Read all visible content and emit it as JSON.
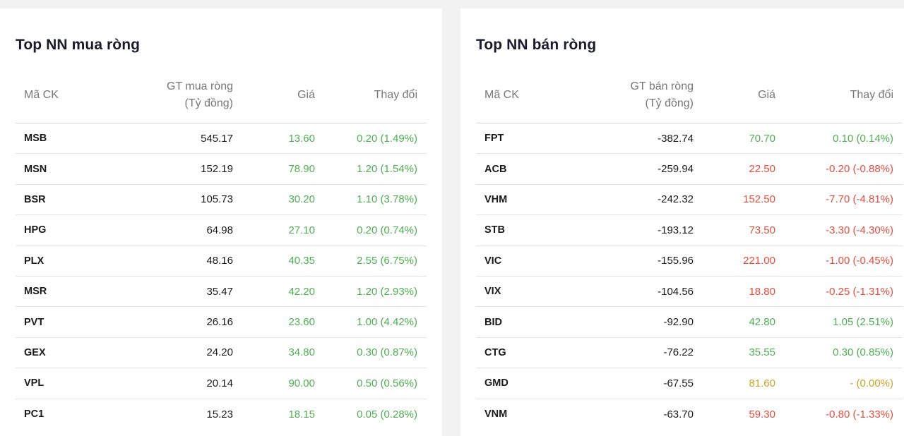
{
  "colors": {
    "up": "#4caf50",
    "down": "#e84c3d",
    "ref": "#c9a227"
  },
  "buy": {
    "title": "Top NN mua ròng",
    "headers": {
      "code": "Mã CK",
      "value_line1": "GT mua ròng",
      "value_line2": "(Tỷ đồng)",
      "price": "Giá",
      "change": "Thay đổi"
    },
    "rows": [
      {
        "code": "MSB",
        "value": "545.17",
        "price": "13.60",
        "change": "0.20 (1.49%)",
        "trend": "up"
      },
      {
        "code": "MSN",
        "value": "152.19",
        "price": "78.90",
        "change": "1.20 (1.54%)",
        "trend": "up"
      },
      {
        "code": "BSR",
        "value": "105.73",
        "price": "30.20",
        "change": "1.10 (3.78%)",
        "trend": "up"
      },
      {
        "code": "HPG",
        "value": "64.98",
        "price": "27.10",
        "change": "0.20 (0.74%)",
        "trend": "up"
      },
      {
        "code": "PLX",
        "value": "48.16",
        "price": "40.35",
        "change": "2.55 (6.75%)",
        "trend": "up"
      },
      {
        "code": "MSR",
        "value": "35.47",
        "price": "42.20",
        "change": "1.20 (2.93%)",
        "trend": "up"
      },
      {
        "code": "PVT",
        "value": "26.16",
        "price": "23.60",
        "change": "1.00 (4.42%)",
        "trend": "up"
      },
      {
        "code": "GEX",
        "value": "24.20",
        "price": "34.80",
        "change": "0.30 (0.87%)",
        "trend": "up"
      },
      {
        "code": "VPL",
        "value": "20.14",
        "price": "90.00",
        "change": "0.50 (0.56%)",
        "trend": "up"
      },
      {
        "code": "PC1",
        "value": "15.23",
        "price": "18.15",
        "change": "0.05 (0.28%)",
        "trend": "up"
      }
    ]
  },
  "sell": {
    "title": "Top NN bán ròng",
    "headers": {
      "code": "Mã CK",
      "value_line1": "GT bán ròng",
      "value_line2": "(Tỷ đồng)",
      "price": "Giá",
      "change": "Thay đổi"
    },
    "rows": [
      {
        "code": "FPT",
        "value": "-382.74",
        "price": "70.70",
        "change": "0.10 (0.14%)",
        "trend": "up"
      },
      {
        "code": "ACB",
        "value": "-259.94",
        "price": "22.50",
        "change": "-0.20 (-0.88%)",
        "trend": "down"
      },
      {
        "code": "VHM",
        "value": "-242.32",
        "price": "152.50",
        "change": "-7.70 (-4.81%)",
        "trend": "down"
      },
      {
        "code": "STB",
        "value": "-193.12",
        "price": "73.50",
        "change": "-3.30 (-4.30%)",
        "trend": "down"
      },
      {
        "code": "VIC",
        "value": "-155.96",
        "price": "221.00",
        "change": "-1.00 (-0.45%)",
        "trend": "down"
      },
      {
        "code": "VIX",
        "value": "-104.56",
        "price": "18.80",
        "change": "-0.25 (-1.31%)",
        "trend": "down"
      },
      {
        "code": "BID",
        "value": "-92.90",
        "price": "42.80",
        "change": "1.05 (2.51%)",
        "trend": "up"
      },
      {
        "code": "CTG",
        "value": "-76.22",
        "price": "35.55",
        "change": "0.30 (0.85%)",
        "trend": "up"
      },
      {
        "code": "GMD",
        "value": "-67.55",
        "price": "81.60",
        "change": "- (0.00%)",
        "trend": "ref"
      },
      {
        "code": "VNM",
        "value": "-63.70",
        "price": "59.30",
        "change": "-0.80 (-1.33%)",
        "trend": "down"
      }
    ]
  }
}
